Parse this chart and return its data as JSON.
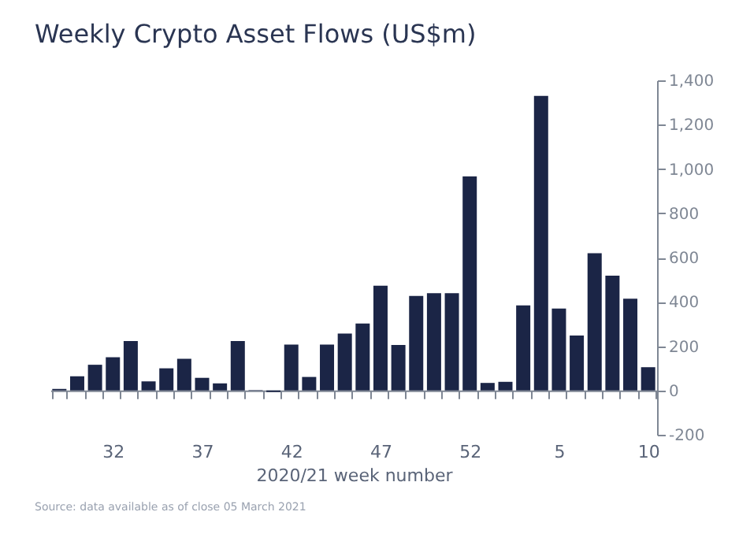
{
  "chart_data": {
    "type": "bar",
    "title": "Weekly Crypto Asset Flows (US$m)",
    "xlabel": "2020/21 week number",
    "categories": [
      null,
      null,
      null,
      "32",
      null,
      null,
      null,
      null,
      "37",
      null,
      null,
      null,
      null,
      "42",
      null,
      null,
      null,
      null,
      "47",
      null,
      null,
      null,
      null,
      "52",
      null,
      null,
      null,
      null,
      "5",
      null,
      null,
      null,
      null,
      "10"
    ],
    "values": [
      7,
      64,
      116,
      150,
      223,
      41,
      100,
      143,
      57,
      32,
      223,
      2,
      -7,
      207,
      61,
      207,
      257,
      302,
      473,
      205,
      427,
      439,
      439,
      966,
      34,
      39,
      384,
      1330,
      370,
      248,
      620,
      518,
      414,
      105
    ],
    "color": "#1b2546",
    "ylim": [
      -200,
      1400
    ],
    "yticks": [
      -200,
      0,
      200,
      400,
      600,
      800,
      {
        "value": 1000,
        "label": "1,000"
      },
      {
        "value": 1200,
        "label": "1,200"
      },
      {
        "value": 1400,
        "label": "1,400"
      }
    ],
    "annotations": [
      "Source: data available as of close 05 March 2021"
    ]
  }
}
